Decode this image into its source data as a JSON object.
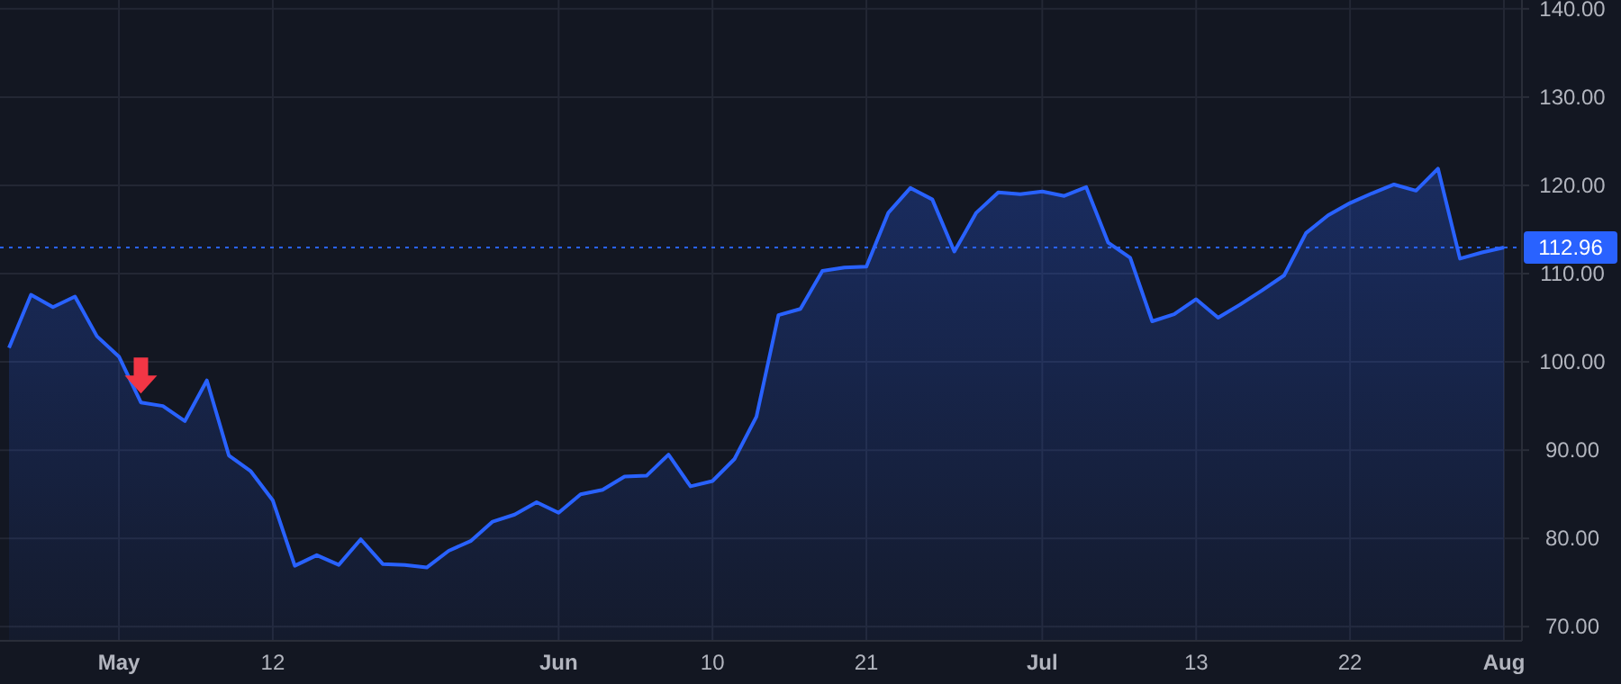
{
  "chart_data": {
    "type": "area",
    "categories": [
      null,
      null,
      null,
      null,
      null,
      "May",
      null,
      null,
      null,
      null,
      null,
      null,
      "12",
      null,
      null,
      null,
      null,
      null,
      null,
      null,
      null,
      null,
      null,
      null,
      null,
      "Jun",
      null,
      null,
      null,
      null,
      null,
      null,
      "10",
      null,
      null,
      null,
      null,
      null,
      null,
      "21",
      null,
      null,
      null,
      null,
      null,
      null,
      null,
      "Jul",
      null,
      null,
      null,
      null,
      null,
      null,
      "13",
      null,
      null,
      null,
      null,
      null,
      null,
      "22",
      null,
      null,
      null,
      null,
      null,
      null,
      "Aug"
    ],
    "series": [
      {
        "color": "#2962ff",
        "values": [
          101.6,
          107.6,
          106.2,
          107.4,
          102.9,
          100.6,
          95.4,
          95.0,
          93.3,
          97.9,
          89.4,
          87.6,
          84.3,
          76.9,
          78.1,
          77.0,
          79.9,
          77.1,
          77.0,
          76.7,
          78.6,
          79.7,
          81.9,
          82.7,
          84.1,
          82.9,
          85.0,
          85.5,
          87.0,
          87.1,
          89.5,
          85.9,
          86.5,
          89.0,
          93.8,
          105.3,
          106.0,
          110.3,
          110.7,
          110.8,
          116.9,
          119.7,
          118.4,
          112.5,
          116.9,
          119.2,
          119.0,
          119.3,
          118.8,
          119.8,
          113.5,
          111.8,
          104.6,
          105.4,
          107.1,
          105.0,
          106.5,
          108.1,
          109.8,
          114.6,
          116.6,
          118.0,
          119.1,
          120.1,
          119.4,
          121.9,
          111.7,
          112.4,
          112.96
        ]
      }
    ],
    "ylim": [
      68.4,
      141
    ],
    "yticks": [
      {
        "value": 70,
        "label": "70.00"
      },
      {
        "value": 80,
        "label": "80.00"
      },
      {
        "value": 90,
        "label": "90.00"
      },
      {
        "value": 100,
        "label": "100.00"
      },
      {
        "value": 110,
        "label": "110.00"
      },
      {
        "value": 120,
        "label": "120.00"
      },
      {
        "value": 130,
        "label": "130.00"
      },
      {
        "value": 140,
        "label": "140.00"
      }
    ],
    "grid": true,
    "ref_lines": [
      {
        "axis": "y",
        "value": 112.96,
        "label": "112.96",
        "color": "#2962ff",
        "line_style": "dotted"
      }
    ]
  }
}
